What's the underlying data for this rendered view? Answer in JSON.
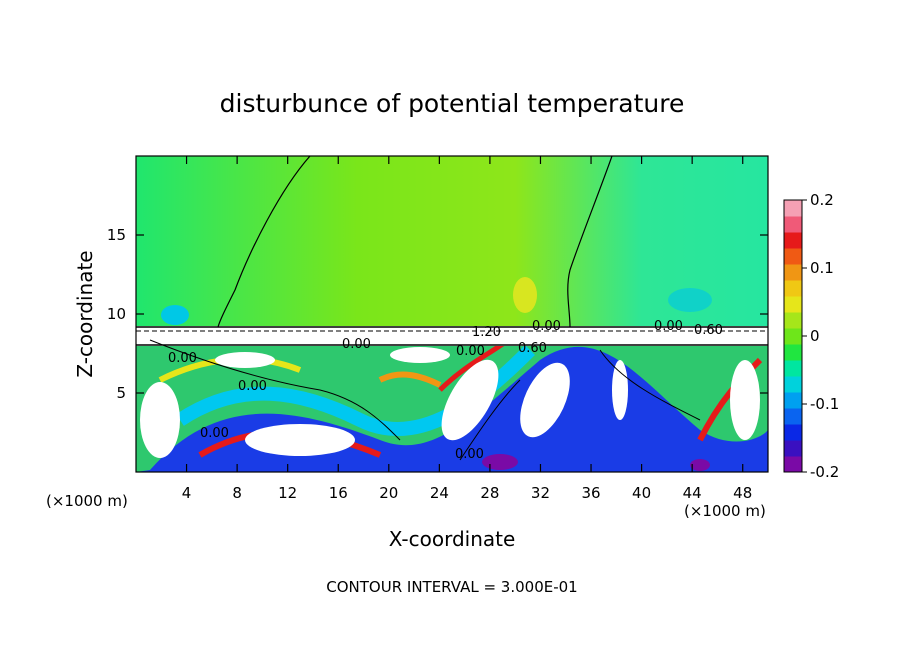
{
  "chart_data": {
    "type": "heatmap",
    "title": "disturbunce of potential temperature",
    "xlabel": "X-coordinate",
    "ylabel": "Z-coordinate",
    "x_unit": "(×1000 m)",
    "z_unit": "(×1000 m)",
    "xlim": [
      0,
      50
    ],
    "zlim": [
      0,
      20
    ],
    "x_ticks": [
      4,
      8,
      12,
      16,
      20,
      24,
      28,
      32,
      36,
      40,
      44,
      48
    ],
    "z_ticks": [
      5,
      10,
      15
    ],
    "colorbar": {
      "range": [
        -0.2,
        0.2
      ],
      "tick_labels": [
        "0.2",
        "0.1",
        "0",
        "-0.1",
        "-0.2"
      ],
      "tick_values": [
        0.2,
        0.1,
        0,
        -0.1,
        -0.2
      ],
      "colors": [
        "#7a0aa6",
        "#3a10c0",
        "#0a28e6",
        "#0a64f0",
        "#00a0f0",
        "#00d2dc",
        "#00e6a0",
        "#20e640",
        "#6ee61a",
        "#a6e61a",
        "#e6e61a",
        "#f0c814",
        "#f09614",
        "#f05a14",
        "#e61a1a",
        "#f05a78",
        "#f5a0b4"
      ]
    },
    "contour_labels": [
      "0.00",
      "0.00",
      "0.00",
      "0.00",
      "0.00",
      "0.00",
      "0.00",
      "1.20",
      "0.60",
      "0.00",
      "0.60"
    ],
    "footer": "CONTOUR INTERVAL = 3.000E-01"
  }
}
